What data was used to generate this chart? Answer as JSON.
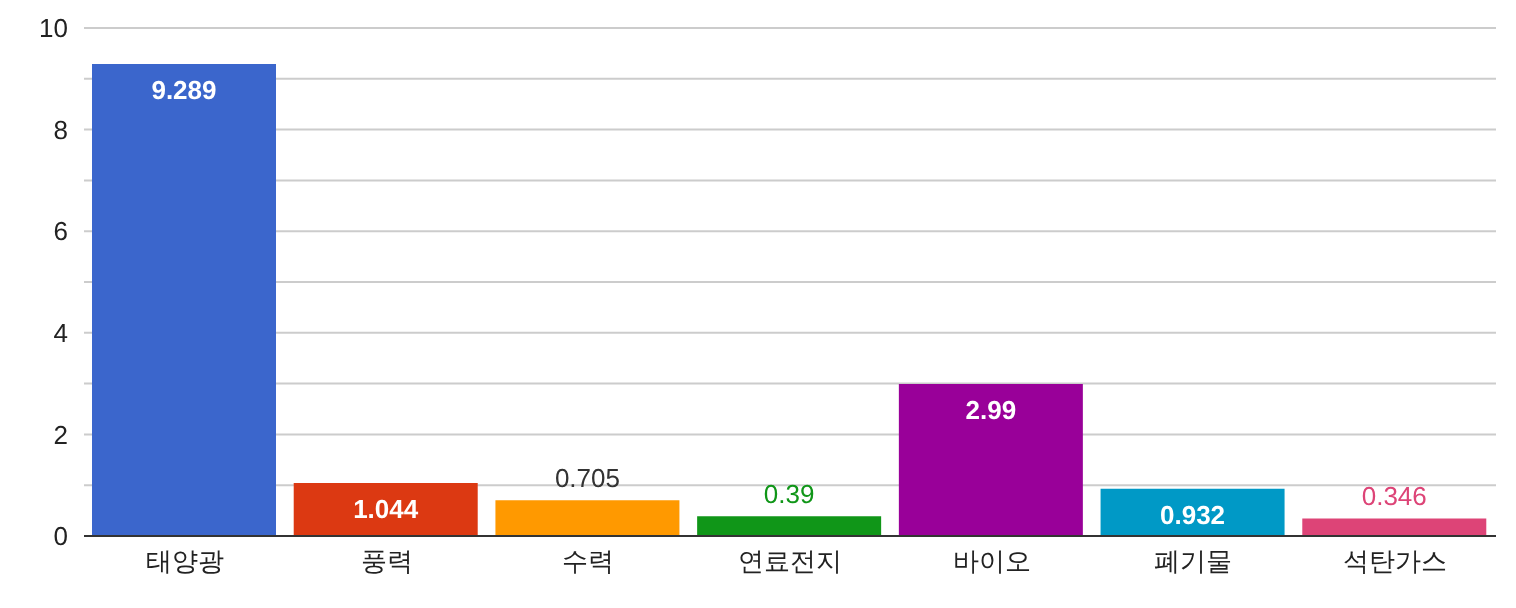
{
  "chart_data": {
    "type": "bar",
    "categories": [
      "태양광",
      "풍력",
      "수력",
      "연료전지",
      "바이오",
      "폐기물",
      "석탄가스"
    ],
    "values": [
      9.289,
      1.044,
      0.705,
      0.39,
      2.99,
      0.932,
      0.346
    ],
    "colors": [
      "#3b66cc",
      "#dc3912",
      "#ff9900",
      "#109618",
      "#990099",
      "#0099c6",
      "#dd4477"
    ],
    "ylim": [
      0,
      10
    ],
    "yticks": [
      0,
      {
        "value": 1,
        "label": null
      },
      2,
      {
        "value": 3,
        "label": null
      },
      4,
      {
        "value": 5,
        "label": null
      },
      6,
      {
        "value": 7,
        "label": null
      },
      8,
      {
        "value": 9,
        "label": null
      },
      10
    ],
    "grid": "y",
    "data_labels": true
  }
}
